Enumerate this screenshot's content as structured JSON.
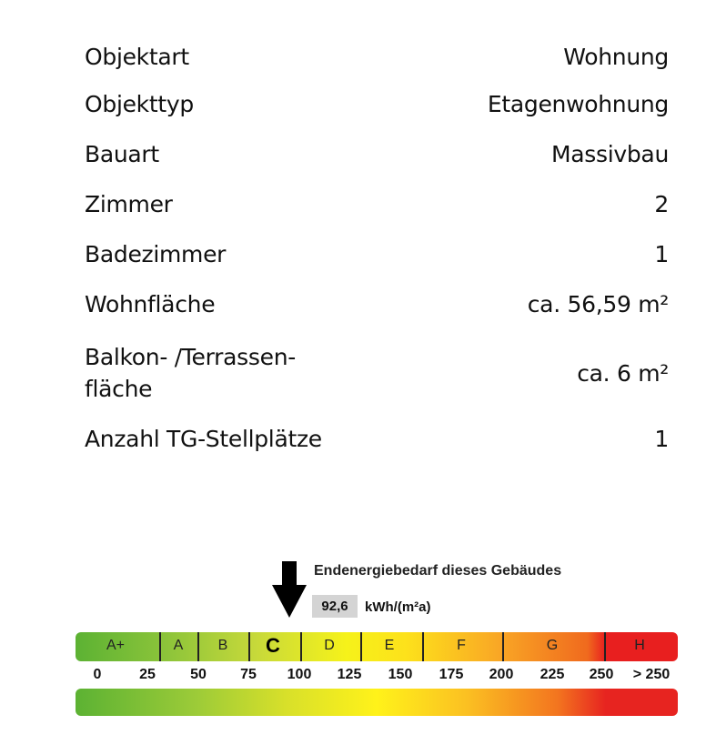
{
  "details": [
    {
      "label": "Objektart",
      "value": "Wohnung"
    },
    {
      "label": "Objekttyp",
      "value": "Etagenwohnung"
    },
    {
      "label": "Bauart",
      "value": "Massivbau"
    },
    {
      "label": "Zimmer",
      "value": "2"
    },
    {
      "label": "Badezimmer",
      "value": "1"
    },
    {
      "label": "Wohnfläche",
      "value": "ca. 56,59 m²"
    },
    {
      "label": "Balkon- /Terrassen-\nfläche",
      "value": "ca. 6 m²"
    },
    {
      "label": "Anzahl TG-Stellplätze",
      "value": "1"
    }
  ],
  "energy": {
    "title": "Endenergiebedarf dieses Gebäudes",
    "value": "92,6",
    "unit": "kWh/(m²a)",
    "current_class": "C",
    "classes": [
      "A+",
      "A",
      "B",
      "C",
      "D",
      "E",
      "F",
      "G",
      "H"
    ],
    "scale": [
      "0",
      "25",
      "50",
      "75",
      "100",
      "125",
      "150",
      "175",
      "200",
      "225",
      "250",
      "> 250"
    ]
  }
}
